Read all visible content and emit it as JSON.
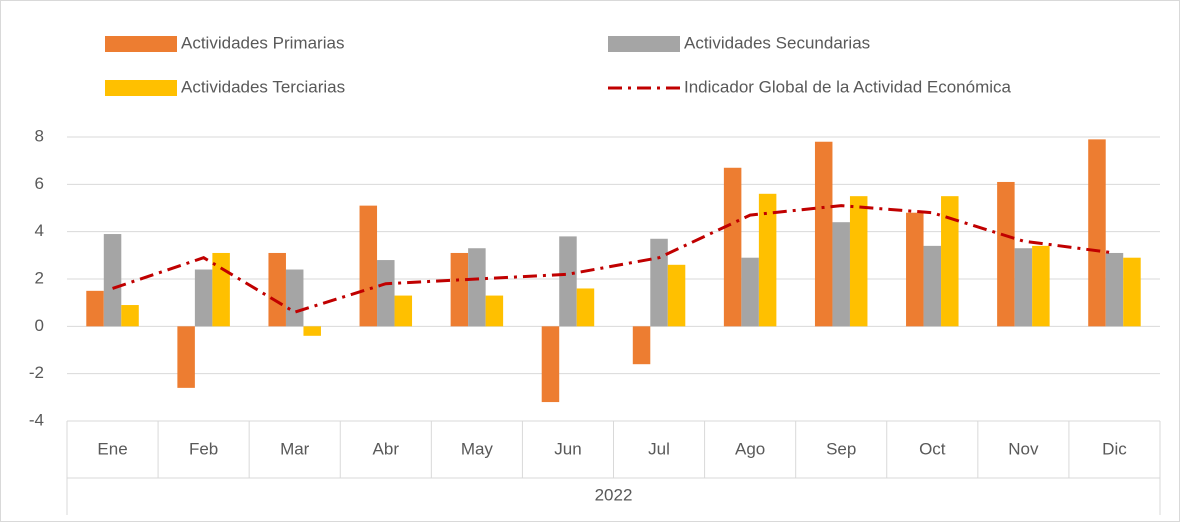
{
  "chart_data": {
    "type": "bar",
    "categories": [
      "Ene",
      "Feb",
      "Mar",
      "Abr",
      "May",
      "Jun",
      "Jul",
      "Ago",
      "Sep",
      "Oct",
      "Nov",
      "Dic"
    ],
    "group_label": "2022",
    "series": [
      {
        "name": "Actividades Primarias",
        "color": "#ed7d31",
        "values": [
          1.5,
          -2.6,
          3.1,
          5.1,
          3.1,
          -3.2,
          -1.6,
          6.7,
          7.8,
          4.8,
          6.1,
          7.9
        ]
      },
      {
        "name": "Actividades Secundarias",
        "color": "#a5a5a5",
        "values": [
          3.9,
          2.4,
          2.4,
          2.8,
          3.3,
          3.8,
          3.7,
          2.9,
          4.4,
          3.4,
          3.3,
          3.1
        ]
      },
      {
        "name": "Actividades Terciarias",
        "color": "#ffc000",
        "values": [
          0.9,
          3.1,
          -0.4,
          1.3,
          1.3,
          1.6,
          2.6,
          5.6,
          5.5,
          5.5,
          3.4,
          2.9
        ]
      },
      {
        "name": "Indicador Global de la Actividad Económica",
        "color": "#c00000",
        "type": "line",
        "values": [
          1.6,
          2.9,
          0.6,
          1.8,
          2.0,
          2.2,
          2.9,
          4.7,
          5.1,
          4.8,
          3.6,
          3.1
        ]
      }
    ],
    "ylim": [
      -4,
      8
    ],
    "yticks": [
      -4,
      -2,
      0,
      2,
      4,
      6,
      8
    ],
    "grid": true,
    "legend": "top"
  }
}
